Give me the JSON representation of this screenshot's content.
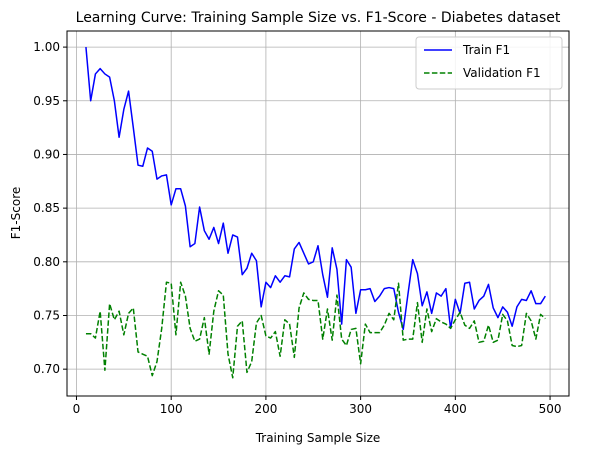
{
  "chart_data": {
    "type": "line",
    "title": "Learning Curve: Training Sample Size vs. F1-Score - Diabetes dataset",
    "xlabel": "Training Sample Size",
    "ylabel": "F1-Score",
    "xlim": [
      -10,
      520
    ],
    "ylim": [
      0.675,
      1.015
    ],
    "xticks": [
      0,
      100,
      200,
      300,
      400,
      500
    ],
    "yticks": [
      0.7,
      0.75,
      0.8,
      0.85,
      0.9,
      0.95,
      1.0
    ],
    "xtick_labels": [
      "0",
      "100",
      "200",
      "300",
      "400",
      "500"
    ],
    "ytick_labels": [
      "0.70",
      "0.75",
      "0.80",
      "0.85",
      "0.90",
      "0.95",
      "1.00"
    ],
    "grid": true,
    "legend_position": "top-right",
    "x": [
      10,
      15,
      20,
      25,
      30,
      35,
      40,
      45,
      50,
      55,
      60,
      65,
      70,
      75,
      80,
      85,
      90,
      95,
      100,
      105,
      110,
      115,
      120,
      125,
      130,
      135,
      140,
      145,
      150,
      155,
      160,
      165,
      170,
      175,
      180,
      185,
      190,
      195,
      200,
      205,
      210,
      215,
      220,
      225,
      230,
      235,
      240,
      245,
      250,
      255,
      260,
      265,
      270,
      275,
      280,
      285,
      290,
      295,
      300,
      305,
      310,
      315,
      320,
      325,
      330,
      335,
      340,
      345,
      350,
      355,
      360,
      365,
      370,
      375,
      380,
      385,
      390,
      395,
      400,
      405,
      410,
      415,
      420,
      425,
      430,
      435,
      440,
      445,
      450,
      455,
      460,
      465,
      470,
      475,
      480,
      485,
      490,
      495
    ],
    "series": [
      {
        "name": "Train F1",
        "color": "#0000ff",
        "style": "solid",
        "values": [
          1.0,
          0.95,
          0.975,
          0.98,
          0.975,
          0.972,
          0.95,
          0.916,
          0.942,
          0.959,
          0.925,
          0.89,
          0.889,
          0.906,
          0.903,
          0.877,
          0.88,
          0.881,
          0.853,
          0.868,
          0.868,
          0.852,
          0.814,
          0.817,
          0.851,
          0.829,
          0.821,
          0.832,
          0.817,
          0.836,
          0.808,
          0.825,
          0.823,
          0.788,
          0.794,
          0.808,
          0.801,
          0.758,
          0.781,
          0.776,
          0.787,
          0.781,
          0.787,
          0.786,
          0.812,
          0.818,
          0.808,
          0.798,
          0.8,
          0.815,
          0.788,
          0.767,
          0.813,
          0.793,
          0.742,
          0.802,
          0.795,
          0.752,
          0.774,
          0.774,
          0.775,
          0.763,
          0.768,
          0.775,
          0.776,
          0.775,
          0.753,
          0.737,
          0.77,
          0.802,
          0.789,
          0.759,
          0.772,
          0.752,
          0.771,
          0.768,
          0.775,
          0.738,
          0.765,
          0.752,
          0.78,
          0.781,
          0.756,
          0.764,
          0.768,
          0.779,
          0.757,
          0.748,
          0.758,
          0.753,
          0.74,
          0.758,
          0.765,
          0.764,
          0.773,
          0.761,
          0.761,
          0.768
        ]
      },
      {
        "name": "Validation F1",
        "color": "#008000",
        "style": "dashed",
        "values": [
          0.733,
          0.733,
          0.729,
          0.754,
          0.699,
          0.761,
          0.746,
          0.754,
          0.732,
          0.752,
          0.757,
          0.716,
          0.714,
          0.712,
          0.694,
          0.707,
          0.738,
          0.781,
          0.78,
          0.732,
          0.781,
          0.768,
          0.738,
          0.726,
          0.728,
          0.748,
          0.714,
          0.754,
          0.773,
          0.769,
          0.714,
          0.692,
          0.74,
          0.745,
          0.697,
          0.707,
          0.743,
          0.75,
          0.731,
          0.729,
          0.735,
          0.712,
          0.746,
          0.742,
          0.711,
          0.757,
          0.771,
          0.765,
          0.764,
          0.764,
          0.728,
          0.756,
          0.727,
          0.769,
          0.728,
          0.722,
          0.737,
          0.738,
          0.705,
          0.742,
          0.734,
          0.734,
          0.734,
          0.741,
          0.752,
          0.746,
          0.78,
          0.727,
          0.728,
          0.728,
          0.762,
          0.725,
          0.756,
          0.735,
          0.747,
          0.744,
          0.742,
          0.738,
          0.746,
          0.753,
          0.741,
          0.738,
          0.745,
          0.725,
          0.726,
          0.741,
          0.725,
          0.727,
          0.751,
          0.745,
          0.722,
          0.721,
          0.722,
          0.752,
          0.745,
          0.728,
          0.751,
          0.747
        ]
      }
    ]
  }
}
